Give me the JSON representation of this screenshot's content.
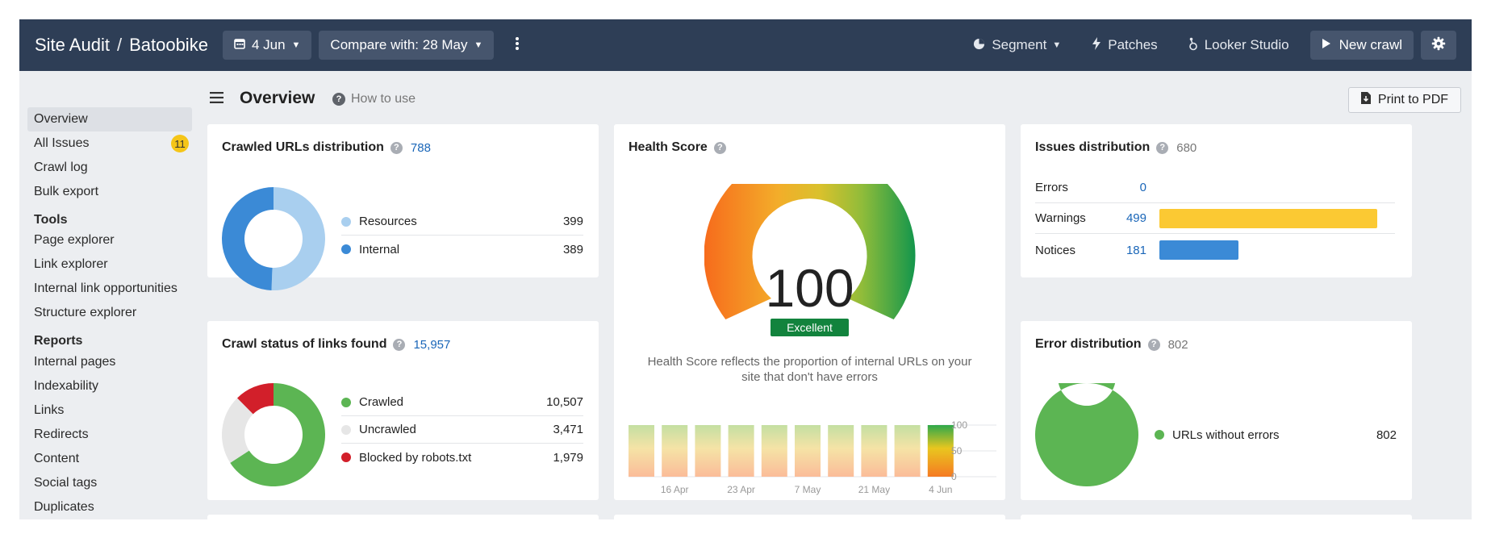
{
  "topbar": {
    "title_left": "Site Audit",
    "title_sep": "/",
    "project": "Batoobike",
    "date_button": "4 Jun",
    "compare_button": "Compare with: 28 May",
    "segment": "Segment",
    "patches": "Patches",
    "looker": "Looker Studio",
    "new_crawl": "New crawl"
  },
  "sidebar": {
    "items": [
      {
        "label": "Overview",
        "active": true
      },
      {
        "label": "All Issues",
        "badge": "11"
      },
      {
        "label": "Crawl log"
      },
      {
        "label": "Bulk export"
      }
    ],
    "tools_heading": "Tools",
    "tools": [
      "Page explorer",
      "Link explorer",
      "Internal link opportunities",
      "Structure explorer"
    ],
    "reports_heading": "Reports",
    "reports": [
      "Internal pages",
      "Indexability",
      "Links",
      "Redirects",
      "Content",
      "Social tags",
      "Duplicates"
    ]
  },
  "header": {
    "title": "Overview",
    "how_to_use": "How to use",
    "print": "Print to PDF"
  },
  "crawled_urls": {
    "title": "Crawled URLs distribution",
    "total": "788",
    "rows": [
      {
        "label": "Resources",
        "value": "399",
        "num": 399,
        "color": "#a9cfef"
      },
      {
        "label": "Internal",
        "value": "389",
        "num": 389,
        "color": "#3b8ad6"
      }
    ]
  },
  "crawl_status": {
    "title": "Crawl status of links found",
    "total": "15,957",
    "rows": [
      {
        "label": "Crawled",
        "value": "10,507",
        "num": 10507,
        "color": "#5cb553"
      },
      {
        "label": "Uncrawled",
        "value": "3,471",
        "num": 3471,
        "color": "#e6e6e6"
      },
      {
        "label": "Blocked by robots.txt",
        "value": "1,979",
        "num": 1979,
        "color": "#d21f2a"
      }
    ]
  },
  "health": {
    "title": "Health Score",
    "score": "100",
    "score_value": 100,
    "rating": "Excellent",
    "description_line1": "Health Score reflects the proportion of internal URLs on your",
    "description_line2": "site that don't have errors",
    "history": {
      "values": [
        100,
        100,
        100,
        100,
        100,
        100,
        100,
        100,
        100,
        100
      ],
      "current_index": 9,
      "x_labels": [
        "16 Apr",
        "23 Apr",
        "7 May",
        "21 May",
        "4 Jun"
      ],
      "y_labels": [
        "100",
        "50",
        "0"
      ]
    }
  },
  "issues": {
    "title": "Issues distribution",
    "total": "680",
    "max": 499,
    "rows": [
      {
        "label": "Errors",
        "value": "0",
        "num": 0,
        "color": "#d21f2a"
      },
      {
        "label": "Warnings",
        "value": "499",
        "num": 499,
        "color": "#fbc933"
      },
      {
        "label": "Notices",
        "value": "181",
        "num": 181,
        "color": "#3b8ad6"
      }
    ]
  },
  "errors": {
    "title": "Error distribution",
    "total": "802",
    "rows": [
      {
        "label": "URLs without errors",
        "value": "802",
        "num": 802,
        "color": "#5cb553"
      }
    ]
  }
}
